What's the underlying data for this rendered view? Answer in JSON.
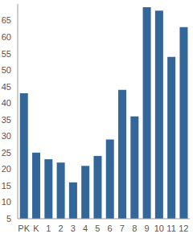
{
  "chart_data": {
    "type": "bar",
    "categories": [
      "PK",
      "K",
      "1",
      "2",
      "3",
      "4",
      "5",
      "6",
      "7",
      "8",
      "9",
      "10",
      "11",
      "12"
    ],
    "values": [
      43,
      25,
      23,
      22,
      16,
      21,
      24,
      29,
      44,
      36,
      69,
      68,
      54,
      63
    ],
    "color": "#336699",
    "ylim": [
      5,
      70
    ],
    "yticks": [
      5,
      10,
      15,
      20,
      25,
      30,
      35,
      40,
      45,
      50,
      55,
      60,
      65
    ],
    "grid": false
  }
}
